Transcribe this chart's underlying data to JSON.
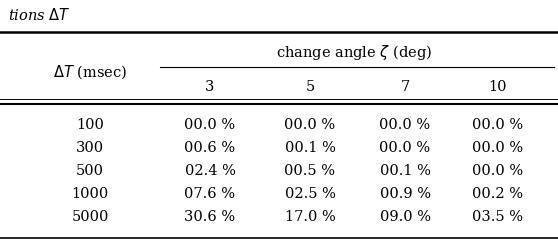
{
  "col_header_top": "change angle $\\zeta$ (deg)",
  "col_header_sub": [
    "3",
    "5",
    "7",
    "10"
  ],
  "row_header_label": "$\\Delta T$ (msec)",
  "title_text": "tions $\\Delta T$",
  "rows": [
    {
      "dt": "100",
      "vals": [
        "00.0 %",
        "00.0 %",
        "00.0 %",
        "00.0 %"
      ]
    },
    {
      "dt": "300",
      "vals": [
        "00.6 %",
        "00.1 %",
        "00.0 %",
        "00.0 %"
      ]
    },
    {
      "dt": "500",
      "vals": [
        "02.4 %",
        "00.5 %",
        "00.1 %",
        "00.0 %"
      ]
    },
    {
      "dt": "1000",
      "vals": [
        "07.6 %",
        "02.5 %",
        "00.9 %",
        "00.2 %"
      ]
    },
    {
      "dt": "5000",
      "vals": [
        "30.6 %",
        "17.0 %",
        "09.0 %",
        "03.5 %"
      ]
    }
  ],
  "background": "#ffffff",
  "text_color": "#000000",
  "fontsize": 10.5
}
